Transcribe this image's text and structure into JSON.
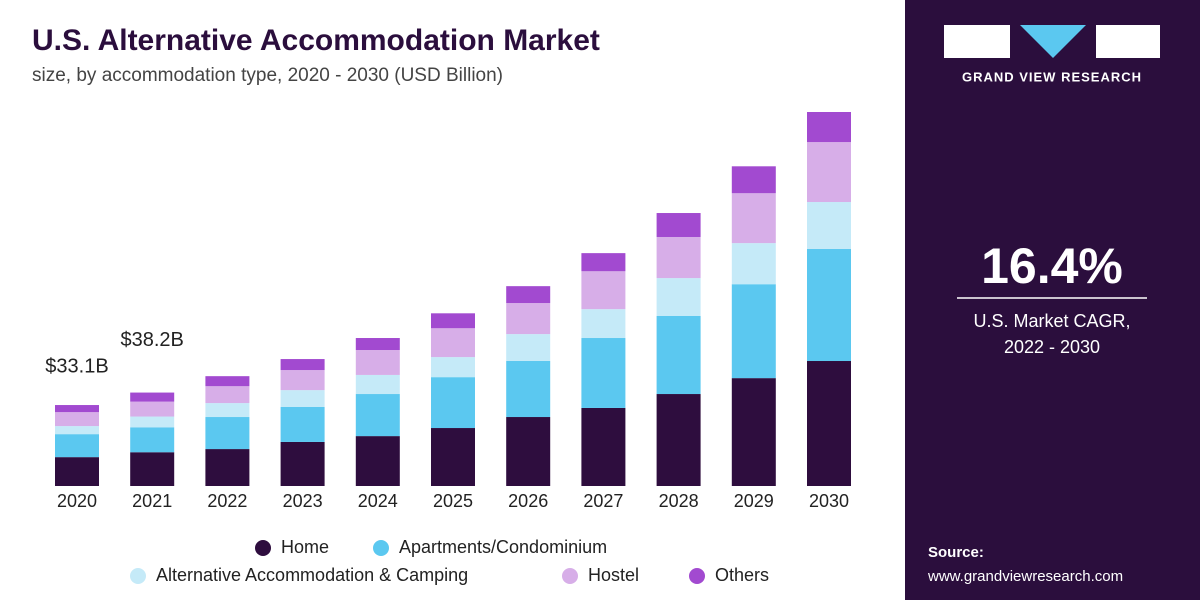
{
  "chart_data": {
    "type": "stacked-bar",
    "title": "U.S. Alternative Accommodation Market",
    "subtitle": "size, by accommodation type, 2020 - 2030 (USD Billion)",
    "categories": [
      "2020",
      "2021",
      "2022",
      "2023",
      "2024",
      "2025",
      "2026",
      "2027",
      "2028",
      "2029",
      "2030"
    ],
    "series": [
      {
        "name": "Home",
        "color": "#2e0d3e",
        "values": [
          11.8,
          13.8,
          15.1,
          18.0,
          20.4,
          23.7,
          28.2,
          31.9,
          37.6,
          44.1,
          51.1
        ]
      },
      {
        "name": "Apartments/Condominium",
        "color": "#5bc8f0",
        "values": [
          9.4,
          10.2,
          13.1,
          14.3,
          17.2,
          20.8,
          22.9,
          28.6,
          31.9,
          38.4,
          45.8
        ]
      },
      {
        "name": "Alternative Accommodation & Camping",
        "color": "#c5eaf8",
        "values": [
          3.3,
          4.4,
          5.7,
          6.9,
          7.8,
          8.2,
          11.0,
          11.8,
          15.5,
          16.8,
          19.2
        ]
      },
      {
        "name": "Hostel",
        "color": "#d7aee8",
        "values": [
          5.7,
          6.1,
          6.9,
          8.2,
          10.2,
          11.8,
          12.7,
          15.5,
          16.8,
          20.4,
          24.5
        ]
      },
      {
        "name": "Others",
        "color": "#a24ad0",
        "values": [
          2.9,
          3.7,
          4.1,
          4.5,
          4.9,
          6.1,
          6.9,
          7.4,
          9.8,
          11.0,
          12.3
        ]
      }
    ],
    "annotations": [
      "$33.1B",
      "$38.2B"
    ]
  },
  "panel": {
    "brand": "GRAND VIEW RESEARCH",
    "cagr": "16.4%",
    "cagr_label": [
      "U.S. Market CAGR,",
      "2022 - 2030"
    ],
    "source_label": "Source:",
    "source_url": "www.grandviewresearch.com"
  }
}
